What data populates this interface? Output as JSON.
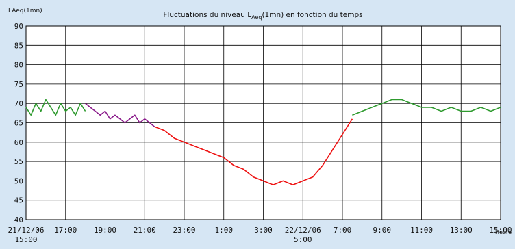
{
  "chart_data": {
    "type": "line",
    "title": {
      "main": "Fluctuations du niveau L",
      "sub": "Aeq",
      "rest": "(1mn) en fonction du temps"
    },
    "ylabel": "LAeq(1mn)",
    "xlabel": "Heure",
    "ylim": [
      40,
      90
    ],
    "yticks": [
      40,
      45,
      50,
      55,
      60,
      65,
      70,
      75,
      80,
      85,
      90
    ],
    "xlim": [
      15,
      39
    ],
    "xticks": [
      {
        "t": 15,
        "line1": "21/12/06",
        "line2": "15:00"
      },
      {
        "t": 17,
        "line1": "17:00",
        "line2": ""
      },
      {
        "t": 19,
        "line1": "19:00",
        "line2": ""
      },
      {
        "t": 21,
        "line1": "21:00",
        "line2": ""
      },
      {
        "t": 23,
        "line1": "23:00",
        "line2": ""
      },
      {
        "t": 25,
        "line1": "1:00",
        "line2": ""
      },
      {
        "t": 27,
        "line1": "3:00",
        "line2": ""
      },
      {
        "t": 29,
        "line1": "22/12/06",
        "line2": "5:00"
      },
      {
        "t": 31,
        "line1": "7:00",
        "line2": ""
      },
      {
        "t": 33,
        "line1": "9:00",
        "line2": ""
      },
      {
        "t": 35,
        "line1": "11:00",
        "line2": ""
      },
      {
        "t": 37,
        "line1": "13:00",
        "line2": ""
      },
      {
        "t": 39,
        "line1": "15:00",
        "line2": ""
      }
    ],
    "grid": true,
    "series": [
      {
        "color": "#2e9a2e",
        "x": [
          15.0,
          15.25,
          15.5,
          15.75,
          16.0,
          16.25,
          16.5,
          16.75,
          17.0,
          17.25,
          17.5,
          17.75,
          18.0
        ],
        "y": [
          69,
          67,
          70,
          68,
          71,
          69,
          67,
          70,
          68,
          69,
          67,
          70,
          68
        ]
      },
      {
        "color": "#8a1a8a",
        "x": [
          18.0,
          18.25,
          18.5,
          18.75,
          19.0,
          19.25,
          19.5,
          19.75,
          20.0,
          20.25,
          20.5,
          20.75,
          21.0,
          21.25,
          21.5
        ],
        "y": [
          70,
          69,
          68,
          67,
          68,
          66,
          67,
          66,
          65,
          66,
          67,
          65,
          66,
          65,
          64
        ]
      },
      {
        "color": "#ee1111",
        "x": [
          21.5,
          22.0,
          22.5,
          23.0,
          23.5,
          24.0,
          24.5,
          25.0,
          25.5,
          26.0,
          26.5,
          27.0,
          27.5,
          28.0,
          28.5,
          29.0,
          29.5,
          30.0,
          30.5,
          31.0,
          31.5
        ],
        "y": [
          64,
          63,
          61,
          60,
          59,
          58,
          57,
          56,
          54,
          53,
          51,
          50,
          49,
          50,
          49,
          50,
          51,
          54,
          58,
          62,
          66
        ]
      },
      {
        "color": "#2e9a2e",
        "x": [
          31.5,
          32.0,
          32.5,
          33.0,
          33.5,
          34.0,
          34.5,
          35.0,
          35.5,
          36.0,
          36.5,
          37.0,
          37.5,
          38.0,
          38.5,
          39.0
        ],
        "y": [
          67,
          68,
          69,
          70,
          71,
          71,
          70,
          69,
          69,
          68,
          69,
          68,
          68,
          69,
          68,
          69
        ]
      }
    ]
  }
}
